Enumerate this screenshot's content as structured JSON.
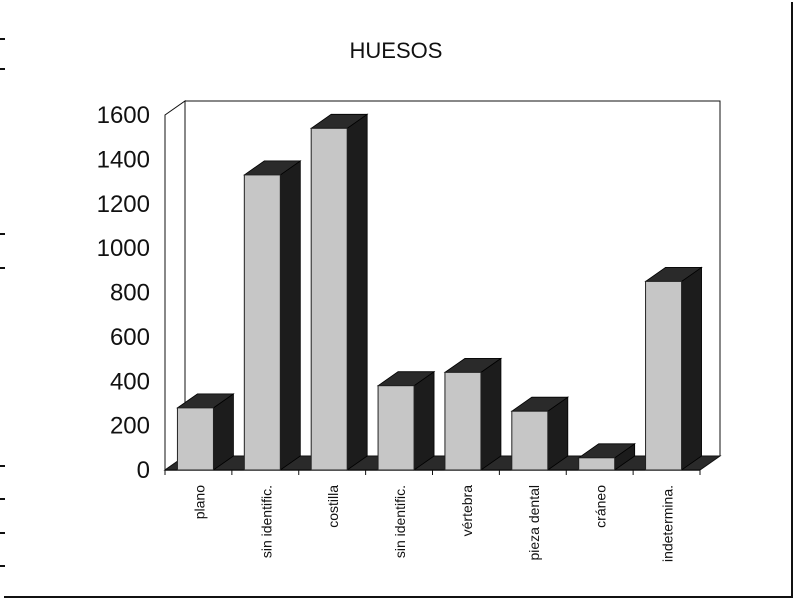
{
  "chart_data": {
    "type": "bar",
    "title": "HUESOS",
    "categories": [
      "plano",
      "sin identific.",
      "costilla",
      "sin identific.",
      "vértebra",
      "pieza dental",
      "cráneo",
      "indetermina."
    ],
    "values": [
      280,
      1330,
      1540,
      380,
      440,
      265,
      55,
      850
    ],
    "xlabel": "",
    "ylabel": "",
    "ylim": [
      0,
      1600
    ],
    "yticks": [
      0,
      200,
      400,
      600,
      800,
      1000,
      1200,
      1400,
      1600
    ],
    "grid": false,
    "legend": "none",
    "three_d": true,
    "colors": {
      "bar_front": "#c6c6c6",
      "bar_top": "#2a2a2a",
      "bar_side": "#1c1c1c",
      "axis": "#111111"
    }
  }
}
